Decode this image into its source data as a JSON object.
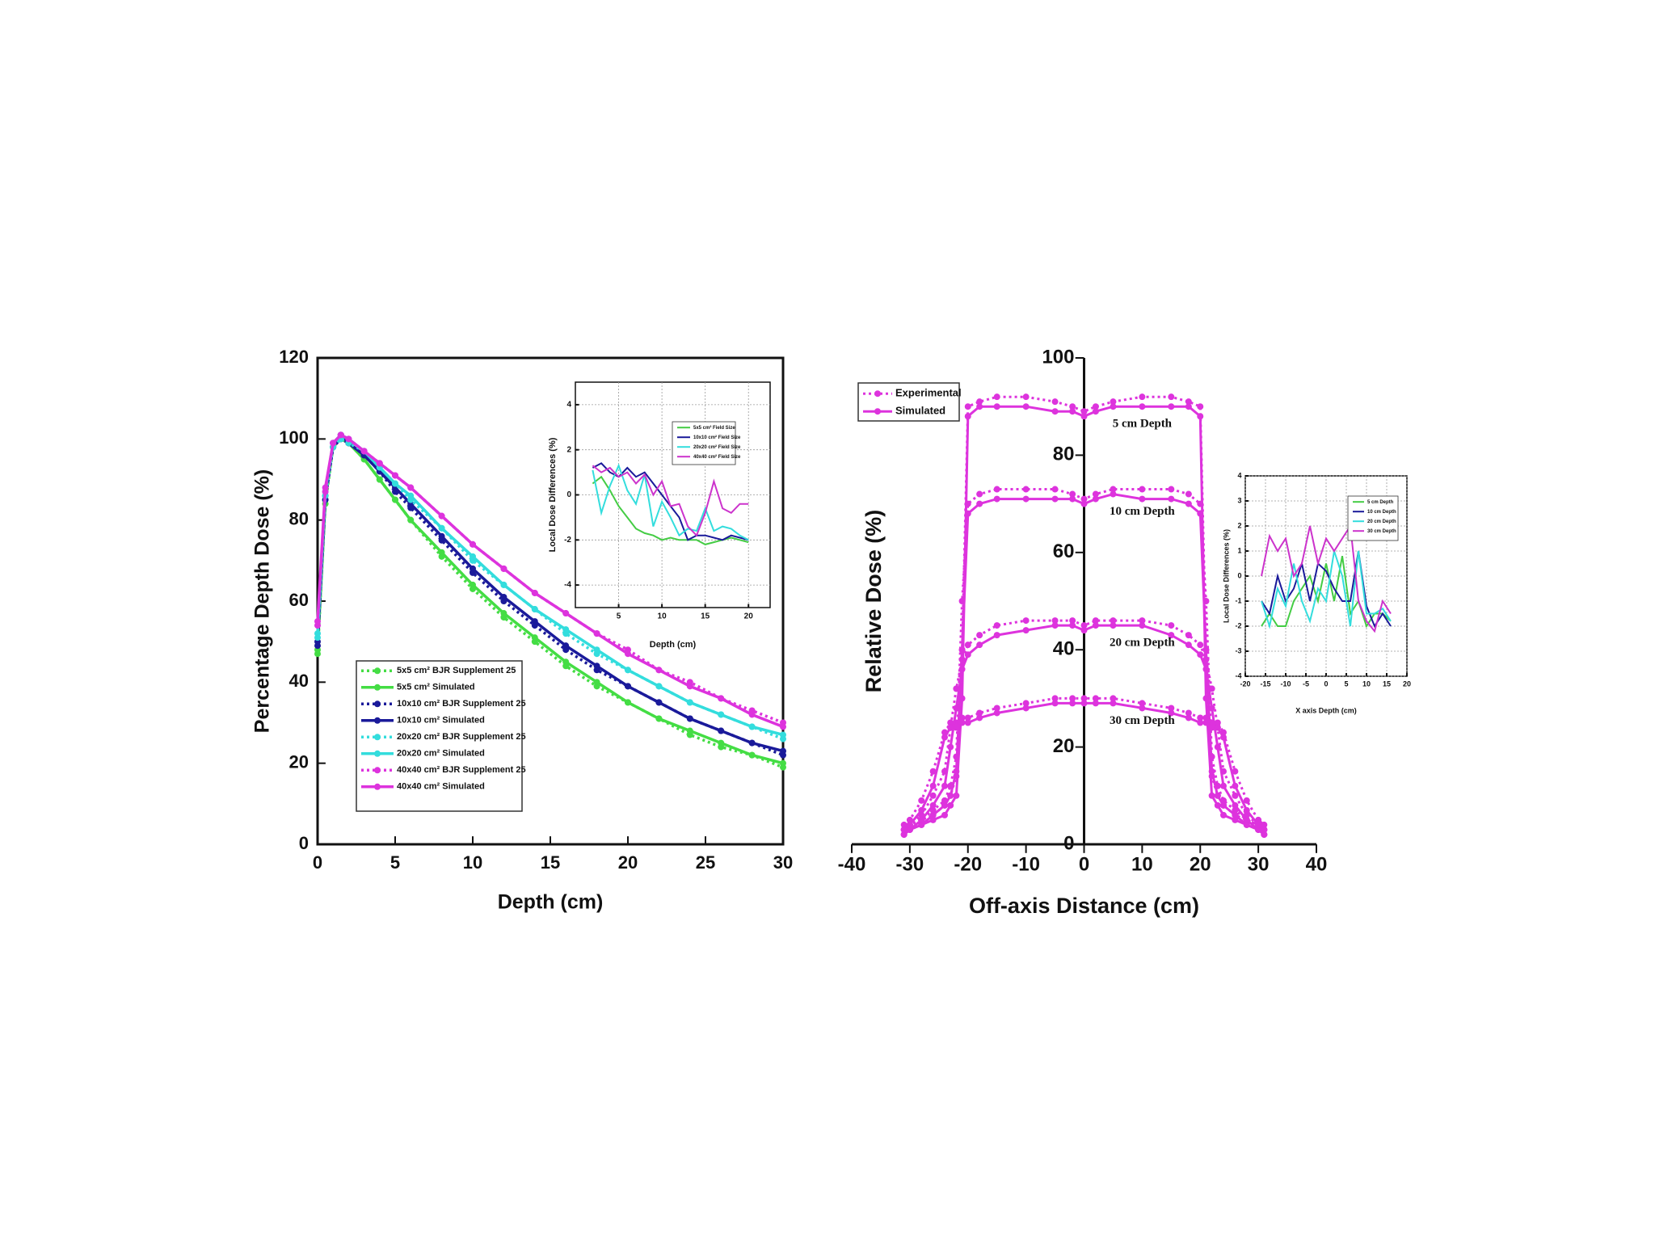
{
  "chart_data": [
    {
      "type": "line",
      "x_label": "Depth (cm)",
      "y_label": "Percentage Depth Dose (%)",
      "xlim": [
        0,
        30
      ],
      "xticks": [
        0,
        5,
        10,
        15,
        20,
        25,
        30
      ],
      "ylim": [
        0,
        120
      ],
      "yticks": [
        0,
        20,
        40,
        60,
        80,
        100,
        120
      ],
      "legend": "lower left",
      "markers": true,
      "x": [
        0,
        0.5,
        1,
        1.5,
        2,
        3,
        4,
        5,
        6,
        8,
        10,
        12,
        14,
        16,
        18,
        20,
        22,
        24,
        26,
        28,
        30
      ],
      "series": [
        {
          "name": "5x5 cm² BJR Supplement 25",
          "color": "#44dd44",
          "dashed": true,
          "values": [
            47,
            84,
            98,
            100,
            99,
            95,
            90,
            85,
            80,
            71,
            63,
            56,
            50,
            44,
            39,
            35,
            31,
            27,
            24,
            22,
            19
          ]
        },
        {
          "name": "5x5 cm² Simulated",
          "color": "#44dd44",
          "dashed": false,
          "values": [
            48,
            85,
            99,
            101,
            99,
            95,
            90,
            85,
            80,
            72,
            64,
            57,
            51,
            45,
            40,
            35,
            31,
            28,
            25,
            22,
            20
          ]
        },
        {
          "name": "10x10 cm² BJR Supplement 25",
          "color": "#1a1a9a",
          "dashed": true,
          "values": [
            49,
            85,
            98,
            100,
            99,
            96,
            92,
            87,
            83,
            75,
            67,
            60,
            54,
            48,
            43,
            39,
            35,
            31,
            28,
            25,
            22
          ]
        },
        {
          "name": "10x10 cm² Simulated",
          "color": "#1a1a9a",
          "dashed": false,
          "values": [
            50,
            86,
            99,
            101,
            99,
            96,
            92,
            88,
            84,
            76,
            68,
            61,
            55,
            49,
            44,
            39,
            35,
            31,
            28,
            25,
            23
          ]
        },
        {
          "name": "20x20 cm² BJR Supplement 25",
          "color": "#33dddd",
          "dashed": true,
          "values": [
            51,
            86,
            98,
            100,
            99,
            97,
            93,
            89,
            85,
            78,
            70,
            64,
            58,
            52,
            47,
            43,
            39,
            35,
            32,
            29,
            26
          ]
        },
        {
          "name": "20x20 cm² Simulated",
          "color": "#33dddd",
          "dashed": false,
          "values": [
            52,
            87,
            99,
            101,
            100,
            97,
            93,
            89,
            86,
            78,
            71,
            64,
            58,
            53,
            48,
            43,
            39,
            35,
            32,
            29,
            27
          ]
        },
        {
          "name": "40x40 cm² BJR Supplement 25",
          "color": "#dd33dd",
          "dashed": true,
          "values": [
            54,
            87,
            99,
            101,
            100,
            97,
            94,
            91,
            88,
            81,
            74,
            68,
            62,
            57,
            52,
            48,
            43,
            40,
            36,
            33,
            30
          ]
        },
        {
          "name": "40x40 cm² Simulated",
          "color": "#dd33dd",
          "dashed": false,
          "values": [
            55,
            88,
            99,
            101,
            100,
            97,
            94,
            91,
            88,
            81,
            74,
            68,
            62,
            57,
            52,
            47,
            43,
            39,
            36,
            32,
            29
          ]
        }
      ]
    },
    {
      "type": "line",
      "x_label": "Depth (cm)",
      "y_label": "Local Dose Differences (%)",
      "xlim": [
        0,
        22.5
      ],
      "xticks": [
        5,
        10,
        15,
        20
      ],
      "ylim": [
        -5,
        5
      ],
      "yticks": [
        -4,
        -2,
        0,
        2,
        4
      ],
      "grid": true,
      "legend": "upper right",
      "markers": false,
      "x": [
        2,
        3,
        4,
        5,
        6,
        7,
        8,
        9,
        10,
        11,
        12,
        13,
        14,
        15,
        16,
        17,
        18,
        19,
        20
      ],
      "series": [
        {
          "name": "5x5 cm² Field Size",
          "color": "#44cc44",
          "dashed": false,
          "values": [
            0.5,
            0.8,
            0.2,
            -0.5,
            -1,
            -1.5,
            -1.7,
            -1.8,
            -2,
            -1.9,
            -2,
            -2,
            -2,
            -2.2,
            -2.1,
            -2,
            -1.9,
            -2,
            -2.1
          ]
        },
        {
          "name": "10x10 cm² Field Size",
          "color": "#1a1a9a",
          "dashed": false,
          "values": [
            1.2,
            1.4,
            1,
            0.8,
            1.2,
            0.8,
            1,
            0.5,
            0,
            -0.5,
            -1,
            -2,
            -1.8,
            -1.8,
            -1.9,
            -2,
            -1.8,
            -1.9,
            -2
          ]
        },
        {
          "name": "20x20 cm² Field Size",
          "color": "#33dddd",
          "dashed": false,
          "values": [
            1.1,
            -0.8,
            0.4,
            1.3,
            0.2,
            -0.4,
            0.9,
            -1.4,
            -0.3,
            -1,
            -1.8,
            -1.5,
            -1.6,
            -0.6,
            -1.6,
            -1.4,
            -1.5,
            -1.8,
            -2
          ]
        },
        {
          "name": "40x40 cm² Field Size",
          "color": "#cc33cc",
          "dashed": false,
          "values": [
            1.3,
            1,
            1.2,
            0.8,
            1,
            0.5,
            0.9,
            0,
            0.6,
            -0.5,
            -0.4,
            -1.4,
            -1.8,
            -0.8,
            0.6,
            -0.6,
            -0.8,
            -0.4,
            -0.4
          ]
        }
      ]
    },
    {
      "type": "profile",
      "x_label": "Off-axis Distance (cm)",
      "y_label": "Relative Dose (%)",
      "xlim": [
        -40,
        40
      ],
      "xticks": [
        -40,
        -30,
        -20,
        -10,
        0,
        10,
        20,
        30,
        40
      ],
      "ylim": [
        0,
        100
      ],
      "yticks": [
        0,
        20,
        40,
        60,
        80,
        100
      ],
      "axis_position": "zero",
      "legend": "upper left",
      "markers": true,
      "depth_labels": [
        "5 cm Depth",
        "10 cm Depth",
        "20 cm Depth",
        "30 cm Depth"
      ],
      "x": [
        -31,
        -30,
        -28,
        -26,
        -24,
        -23,
        -22,
        -21,
        -20,
        -18,
        -15,
        -10,
        -5,
        -2,
        0,
        2,
        5,
        10,
        15,
        18,
        20,
        21,
        22,
        23,
        24,
        26,
        28,
        30,
        31
      ],
      "series": [
        {
          "name": "Experimental",
          "color": "#dd33dd",
          "dashed": true,
          "values": [
            [
              3,
              4,
              5,
              6,
              8,
              10,
              14,
              40,
              90,
              91,
              92,
              92,
              91,
              90,
              89,
              90,
              91,
              92,
              92,
              91,
              90,
              40,
              14,
              10,
              8,
              6,
              5,
              4,
              3
            ],
            [
              3,
              4,
              5,
              7,
              9,
              12,
              18,
              50,
              70,
              72,
              73,
              73,
              73,
              72,
              71,
              72,
              73,
              73,
              73,
              72,
              70,
              50,
              18,
              12,
              9,
              7,
              5,
              4,
              3
            ],
            [
              3,
              4,
              6,
              10,
              15,
              24,
              32,
              38,
              41,
              43,
              45,
              46,
              46,
              46,
              45,
              46,
              46,
              46,
              45,
              43,
              41,
              38,
              32,
              24,
              15,
              10,
              6,
              4,
              3
            ],
            [
              4,
              5,
              9,
              15,
              23,
              25,
              25,
              26,
              26,
              27,
              28,
              29,
              30,
              30,
              30,
              30,
              30,
              29,
              28,
              27,
              26,
              26,
              25,
              25,
              23,
              15,
              9,
              5,
              4
            ]
          ]
        },
        {
          "name": "Simulated",
          "color": "#dd33dd",
          "dashed": false,
          "values": [
            [
              2,
              3,
              4,
              5,
              6,
              8,
              10,
              30,
              88,
              90,
              90,
              90,
              89,
              89,
              88,
              89,
              90,
              90,
              90,
              90,
              88,
              30,
              10,
              8,
              6,
              5,
              4,
              3,
              2
            ],
            [
              2,
              3,
              4,
              6,
              8,
              10,
              15,
              40,
              68,
              70,
              71,
              71,
              71,
              71,
              70,
              71,
              72,
              71,
              71,
              70,
              68,
              40,
              15,
              10,
              8,
              6,
              4,
              3,
              2
            ],
            [
              2,
              3,
              5,
              8,
              12,
              20,
              28,
              36,
              39,
              41,
              43,
              44,
              45,
              45,
              44,
              45,
              45,
              45,
              43,
              41,
              39,
              36,
              28,
              20,
              12,
              8,
              5,
              3,
              2
            ],
            [
              3,
              4,
              7,
              12,
              22,
              24,
              24,
              25,
              25,
              26,
              27,
              28,
              29,
              29,
              29,
              29,
              29,
              28,
              27,
              26,
              25,
              25,
              24,
              24,
              22,
              12,
              7,
              4,
              3
            ]
          ]
        }
      ]
    },
    {
      "type": "line",
      "x_label": "X axis Depth (cm)",
      "y_label": "Local Dose Differences (%)",
      "xlim": [
        -20,
        20
      ],
      "xticks": [
        -20,
        -15,
        -10,
        -5,
        0,
        5,
        10,
        15,
        20
      ],
      "ylim": [
        -4,
        4
      ],
      "yticks": [
        -4,
        -3,
        -2,
        -1,
        0,
        1,
        2,
        3,
        4
      ],
      "grid": true,
      "legend": "upper right",
      "markers": false,
      "x": [
        -16,
        -14,
        -12,
        -10,
        -8,
        -6,
        -4,
        -2,
        0,
        2,
        4,
        6,
        8,
        10,
        12,
        14,
        16
      ],
      "series": [
        {
          "name": "5 cm Depth",
          "color": "#44cc44",
          "dashed": false,
          "values": [
            -2,
            -1.5,
            -2,
            -2,
            -1,
            -0.5,
            0,
            -1,
            0.5,
            -1,
            0.8,
            -1.5,
            -1,
            -2,
            -1.5,
            -1.5,
            -1.8
          ]
        },
        {
          "name": "10 cm Depth",
          "color": "#1a1a9a",
          "dashed": false,
          "values": [
            -1,
            -1.5,
            0,
            -1,
            -0.5,
            0.5,
            -1,
            0.5,
            0.2,
            -0.5,
            -1,
            -1,
            1,
            -1.2,
            -2,
            -1.5,
            -2
          ]
        },
        {
          "name": "20 cm Depth",
          "color": "#33dddd",
          "dashed": false,
          "values": [
            -1,
            -2,
            -0.5,
            -1.2,
            0.5,
            -1,
            -1.8,
            -0.5,
            -1,
            1,
            0,
            -2,
            1,
            -1.5,
            -1.5,
            -1.3,
            -1.8
          ]
        },
        {
          "name": "30 cm Depth",
          "color": "#cc33cc",
          "dashed": false,
          "values": [
            0,
            1.6,
            1,
            1.5,
            0,
            0.5,
            2,
            0.5,
            1.5,
            1,
            1.5,
            2,
            -1,
            -1.8,
            -2.2,
            -1,
            -1.5
          ]
        }
      ]
    }
  ]
}
